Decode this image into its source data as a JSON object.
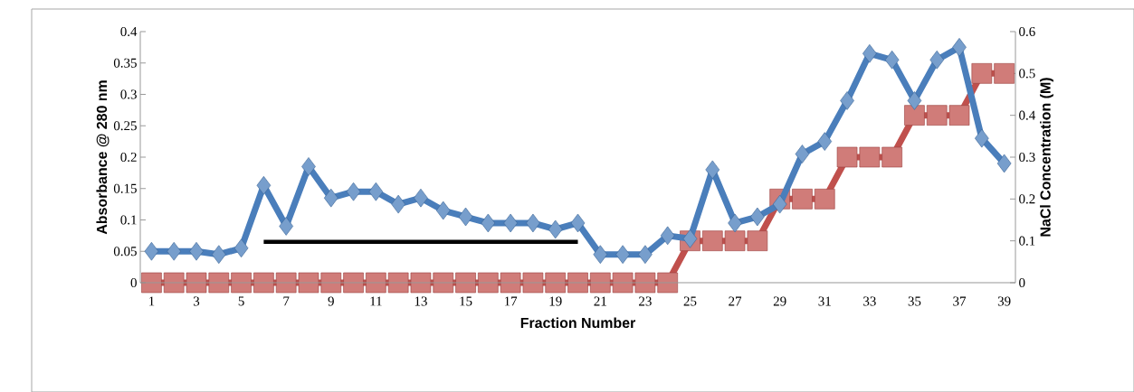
{
  "chart_data": {
    "type": "line",
    "xlabel": "Fraction Number",
    "ylabel": "Absorbance @ 280 nm",
    "y2label": "NaCl Concentration (M)",
    "categories": [
      "1",
      null,
      "3",
      null,
      "5",
      null,
      "7",
      null,
      "9",
      null,
      "11",
      null,
      "13",
      null,
      "15",
      null,
      "17",
      null,
      "19",
      null,
      "21",
      null,
      "23",
      null,
      "25",
      null,
      "27",
      null,
      "29",
      null,
      "31",
      null,
      "33",
      null,
      "35",
      null,
      "37",
      null,
      "39"
    ],
    "series": [
      {
        "color": "#4a7ebb",
        "marker": "diamond",
        "values": [
          0.05,
          0.05,
          0.05,
          0.045,
          0.055,
          0.155,
          0.09,
          0.185,
          0.135,
          0.145,
          0.145,
          0.125,
          0.135,
          0.115,
          0.105,
          0.095,
          0.095,
          0.095,
          0.085,
          0.095,
          0.045,
          0.045,
          0.045,
          0.075,
          0.07,
          0.18,
          0.095,
          0.105,
          0.125,
          0.205,
          0.225,
          0.29,
          0.365,
          0.355,
          0.29,
          0.355,
          0.375,
          0.23,
          0.19
        ]
      },
      {
        "color": "#000000",
        "marker": "none",
        "values": [
          null,
          null,
          null,
          null,
          null,
          0.065,
          0.065,
          0.065,
          0.065,
          0.065,
          0.065,
          0.065,
          0.065,
          0.065,
          0.065,
          0.065,
          0.065,
          0.065,
          0.065,
          0.065,
          null,
          null,
          null,
          null,
          null,
          null,
          null,
          null,
          null,
          null,
          null,
          null,
          null,
          null,
          null,
          null,
          null,
          null,
          null
        ]
      },
      {
        "color": "#c0504d",
        "marker": "square",
        "axis": "y2",
        "values": [
          0,
          0,
          0,
          0,
          0,
          0,
          0,
          0,
          0,
          0,
          0,
          0,
          0,
          0,
          0,
          0,
          0,
          0,
          0,
          0,
          0,
          0,
          0,
          0,
          0.1,
          0.1,
          0.1,
          0.1,
          0.2,
          0.2,
          0.2,
          0.3,
          0.3,
          0.3,
          0.4,
          0.4,
          0.4,
          0.5,
          0.5
        ]
      }
    ],
    "ylim": [
      0,
      0.4
    ],
    "yticks": [
      0,
      0.05,
      0.1,
      0.15,
      0.2,
      0.25,
      0.3,
      0.35,
      0.4
    ],
    "y2lim": [
      0,
      0.6
    ],
    "y2ticks": [
      0,
      0.1,
      0.2,
      0.3,
      0.4,
      0.5,
      0.6
    ]
  }
}
